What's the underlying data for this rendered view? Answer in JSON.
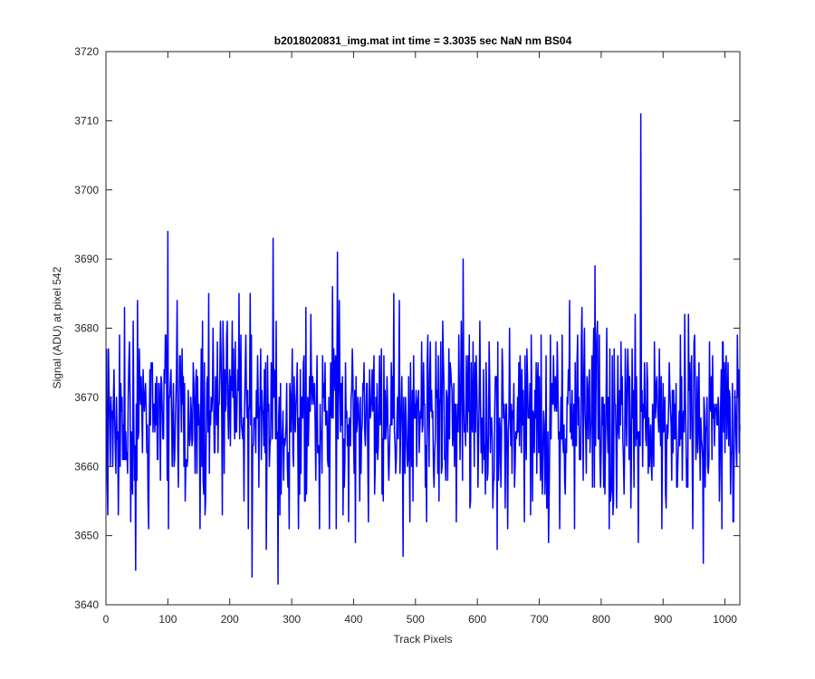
{
  "chart_data": {
    "type": "line",
    "title": "b2018020831_img.mat int time = 3.3035 sec  NaN nm BS04",
    "xlabel": "Track Pixels",
    "ylabel": "Signal (ADU) at pixel 542",
    "xlim": [
      0,
      1024
    ],
    "ylim": [
      3640,
      3720
    ],
    "xticks": [
      0,
      100,
      200,
      300,
      400,
      500,
      600,
      700,
      800,
      900,
      1000
    ],
    "yticks": [
      3640,
      3650,
      3660,
      3670,
      3680,
      3690,
      3700,
      3710,
      3720
    ],
    "grid": false,
    "line_color": "#0000ff",
    "series": [
      {
        "x_start": 1,
        "x_step": 1,
        "count": 1024,
        "baseline_mean": 3667,
        "noise_std": 7,
        "notable_points": [
          {
            "x": 48,
            "y": 3645
          },
          {
            "x": 100,
            "y": 3694
          },
          {
            "x": 101,
            "y": 3651
          },
          {
            "x": 236,
            "y": 3644
          },
          {
            "x": 259,
            "y": 3648
          },
          {
            "x": 270,
            "y": 3693
          },
          {
            "x": 278,
            "y": 3643
          },
          {
            "x": 374,
            "y": 3691
          },
          {
            "x": 403,
            "y": 3649
          },
          {
            "x": 480,
            "y": 3647
          },
          {
            "x": 577,
            "y": 3690
          },
          {
            "x": 632,
            "y": 3648
          },
          {
            "x": 715,
            "y": 3649
          },
          {
            "x": 790,
            "y": 3689
          },
          {
            "x": 860,
            "y": 3649
          },
          {
            "x": 864,
            "y": 3711
          },
          {
            "x": 965,
            "y": 3646
          },
          {
            "x": 1013,
            "y": 3652
          }
        ]
      }
    ]
  }
}
